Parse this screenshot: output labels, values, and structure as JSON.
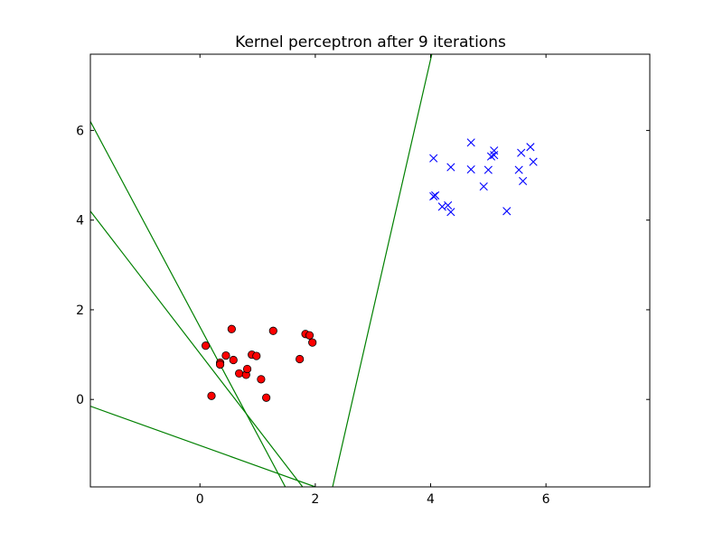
{
  "chart_data": {
    "type": "scatter",
    "title": "Kernel perceptron after 9 iterations",
    "xlabel": "",
    "ylabel": "",
    "xlim": [
      -1.9,
      7.8
    ],
    "ylim": [
      -1.95,
      7.7
    ],
    "xticks": [
      0,
      2,
      4,
      6
    ],
    "yticks": [
      0,
      2,
      4,
      6
    ],
    "grid": false,
    "series": [
      {
        "marker": "circle",
        "color": "#ff0000",
        "points": [
          [
            0.1,
            1.2
          ],
          [
            0.2,
            0.08
          ],
          [
            0.35,
            0.82
          ],
          [
            0.35,
            0.78
          ],
          [
            0.45,
            0.98
          ],
          [
            0.55,
            1.57
          ],
          [
            0.58,
            0.88
          ],
          [
            0.68,
            0.58
          ],
          [
            0.8,
            0.55
          ],
          [
            0.82,
            0.68
          ],
          [
            0.9,
            1.0
          ],
          [
            0.98,
            0.97
          ],
          [
            1.06,
            0.45
          ],
          [
            1.15,
            0.04
          ],
          [
            1.27,
            1.53
          ],
          [
            1.73,
            0.9
          ],
          [
            1.83,
            1.46
          ],
          [
            1.9,
            1.43
          ],
          [
            1.95,
            1.27
          ]
        ]
      },
      {
        "marker": "x",
        "color": "#0000ff",
        "points": [
          [
            4.05,
            5.38
          ],
          [
            4.05,
            4.53
          ],
          [
            4.08,
            4.55
          ],
          [
            4.2,
            4.3
          ],
          [
            4.3,
            4.33
          ],
          [
            4.35,
            4.18
          ],
          [
            4.35,
            5.18
          ],
          [
            4.7,
            5.13
          ],
          [
            4.7,
            5.73
          ],
          [
            4.92,
            4.75
          ],
          [
            5.0,
            5.12
          ],
          [
            5.05,
            5.42
          ],
          [
            5.1,
            5.55
          ],
          [
            5.1,
            5.45
          ],
          [
            5.32,
            4.2
          ],
          [
            5.53,
            5.12
          ],
          [
            5.57,
            5.5
          ],
          [
            5.6,
            4.87
          ],
          [
            5.73,
            5.63
          ],
          [
            5.78,
            5.3
          ]
        ]
      }
    ],
    "lines": [
      {
        "color": "#008000",
        "x": [
          -1.9,
          1.48
        ],
        "y": [
          6.2,
          -1.95
        ]
      },
      {
        "color": "#008000",
        "x": [
          -1.9,
          1.78
        ],
        "y": [
          4.2,
          -1.95
        ]
      },
      {
        "color": "#008000",
        "x": [
          -1.9,
          2.0
        ],
        "y": [
          -0.15,
          -1.95
        ]
      },
      {
        "color": "#008000",
        "x": [
          2.3,
          4.02
        ],
        "y": [
          -1.95,
          7.7
        ]
      }
    ]
  }
}
